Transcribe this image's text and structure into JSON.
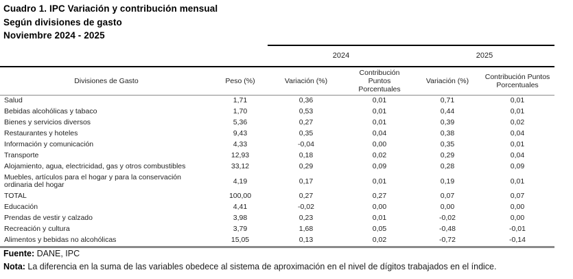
{
  "title": {
    "line1": "Cuadro 1. IPC Variación y contribución mensual",
    "line2": "Según divisiones de gasto",
    "line3": "Noviembre 2024 - 2025"
  },
  "table": {
    "year_groups": [
      "2024",
      "2025"
    ],
    "columns": {
      "division": "Divisiones de Gasto",
      "weight": "Peso (%)",
      "variation": "Variación (%)",
      "contribution": "Contribución Puntos Porcentuales"
    },
    "rows": [
      [
        "Salud",
        "1,71",
        "0,36",
        "0,01",
        "0,71",
        "0,01"
      ],
      [
        "Bebidas alcohólicas y tabaco",
        "1,70",
        "0,53",
        "0,01",
        "0,44",
        "0,01"
      ],
      [
        "Bienes y servicios diversos",
        "5,36",
        "0,27",
        "0,01",
        "0,39",
        "0,02"
      ],
      [
        "Restaurantes y hoteles",
        "9,43",
        "0,35",
        "0,04",
        "0,38",
        "0,04"
      ],
      [
        "Información y comunicación",
        "4,33",
        "-0,04",
        "0,00",
        "0,35",
        "0,01"
      ],
      [
        "Transporte",
        "12,93",
        "0,18",
        "0,02",
        "0,29",
        "0,04"
      ],
      [
        "Alojamiento, agua, electricidad, gas y otros combustibles",
        "33,12",
        "0,29",
        "0,09",
        "0,28",
        "0,09"
      ],
      [
        "Muebles, artículos para el hogar y para la conservación ordinaria del hogar",
        "4,19",
        "0,17",
        "0,01",
        "0,19",
        "0,01"
      ],
      [
        "TOTAL",
        "100,00",
        "0,27",
        "0,27",
        "0,07",
        "0,07"
      ],
      [
        "Educación",
        "4,41",
        "-0,02",
        "0,00",
        "0,00",
        "0,00"
      ],
      [
        "Prendas de vestir y calzado",
        "3,98",
        "0,23",
        "0,01",
        "-0,02",
        "0,00"
      ],
      [
        "Recreación y cultura",
        "3,79",
        "1,68",
        "0,05",
        "-0,48",
        "-0,01"
      ],
      [
        "Alimentos y bebidas no alcohólicas",
        "15,05",
        "0,13",
        "0,02",
        "-0,72",
        "-0,14"
      ]
    ]
  },
  "footer": {
    "fuente_label": "Fuente:",
    "fuente_text": " DANE, IPC",
    "nota_label": "Nota:",
    "nota_text": " La diferencia en la suma de las variables obedece al sistema de aproximación en el nivel de dígitos trabajados en el índice."
  }
}
